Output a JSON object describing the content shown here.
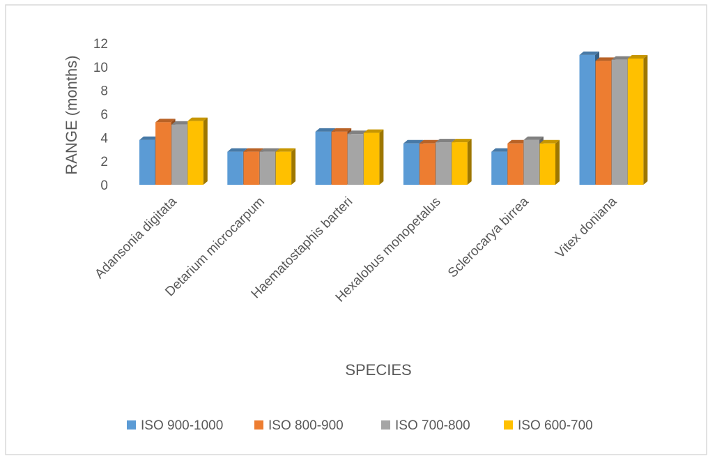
{
  "chart_data": {
    "type": "bar",
    "variant": "3d-clustered-column",
    "title": "",
    "xlabel": "SPECIES",
    "ylabel": "RANGE (months)",
    "ylim": [
      0,
      12
    ],
    "yticks": [
      0,
      2,
      4,
      6,
      8,
      10,
      12
    ],
    "grid": false,
    "legend_position": "bottom",
    "categories": [
      "Adansonia digitata",
      "Detarium microcarpum",
      "Haematostaphis barteri",
      "Hexalobus monopetalus",
      "Sclerocarya birrea",
      "Vitex doniana"
    ],
    "series": [
      {
        "name": "ISO 900-1000",
        "color": "#5b9bd5",
        "values": [
          3.8,
          2.8,
          4.5,
          3.5,
          2.8,
          11.0
        ]
      },
      {
        "name": "ISO 800-900",
        "color": "#ed7d31",
        "values": [
          5.3,
          2.8,
          4.5,
          3.5,
          3.5,
          10.5
        ]
      },
      {
        "name": "ISO 700-800",
        "color": "#a5a5a5",
        "values": [
          5.1,
          2.8,
          4.3,
          3.6,
          3.8,
          10.6
        ]
      },
      {
        "name": "ISO 600-700",
        "color": "#ffc000",
        "values": [
          5.4,
          2.8,
          4.4,
          3.6,
          3.5,
          10.7
        ]
      }
    ]
  }
}
